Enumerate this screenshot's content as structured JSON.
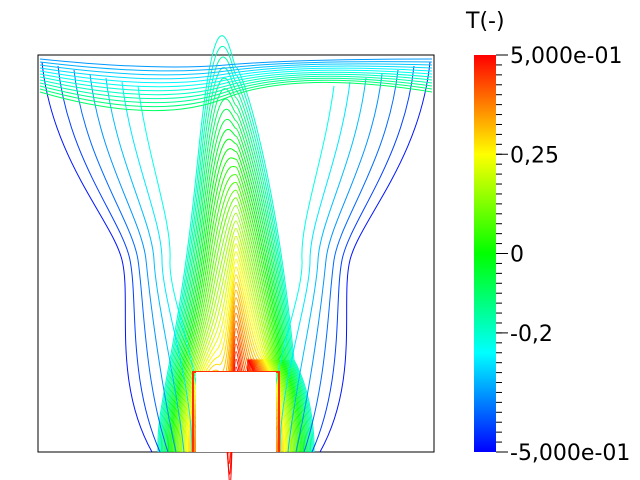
{
  "colorbar": {
    "title": "T(-)",
    "max_label": "5,000e-01",
    "min_label": "-5,000e-01",
    "range": [
      -0.5,
      0.5
    ],
    "colormap": [
      "#0000ff",
      "#00ffff",
      "#00ff00",
      "#ffff00",
      "#ff0000"
    ],
    "tick_labels": [
      {
        "value": 0.25,
        "label": "0,25"
      },
      {
        "value": 0.0,
        "label": "0"
      },
      {
        "value": -0.2,
        "label": "-0,2"
      }
    ]
  },
  "plot": {
    "frame_color": "#000000",
    "contour_count": 40
  }
}
